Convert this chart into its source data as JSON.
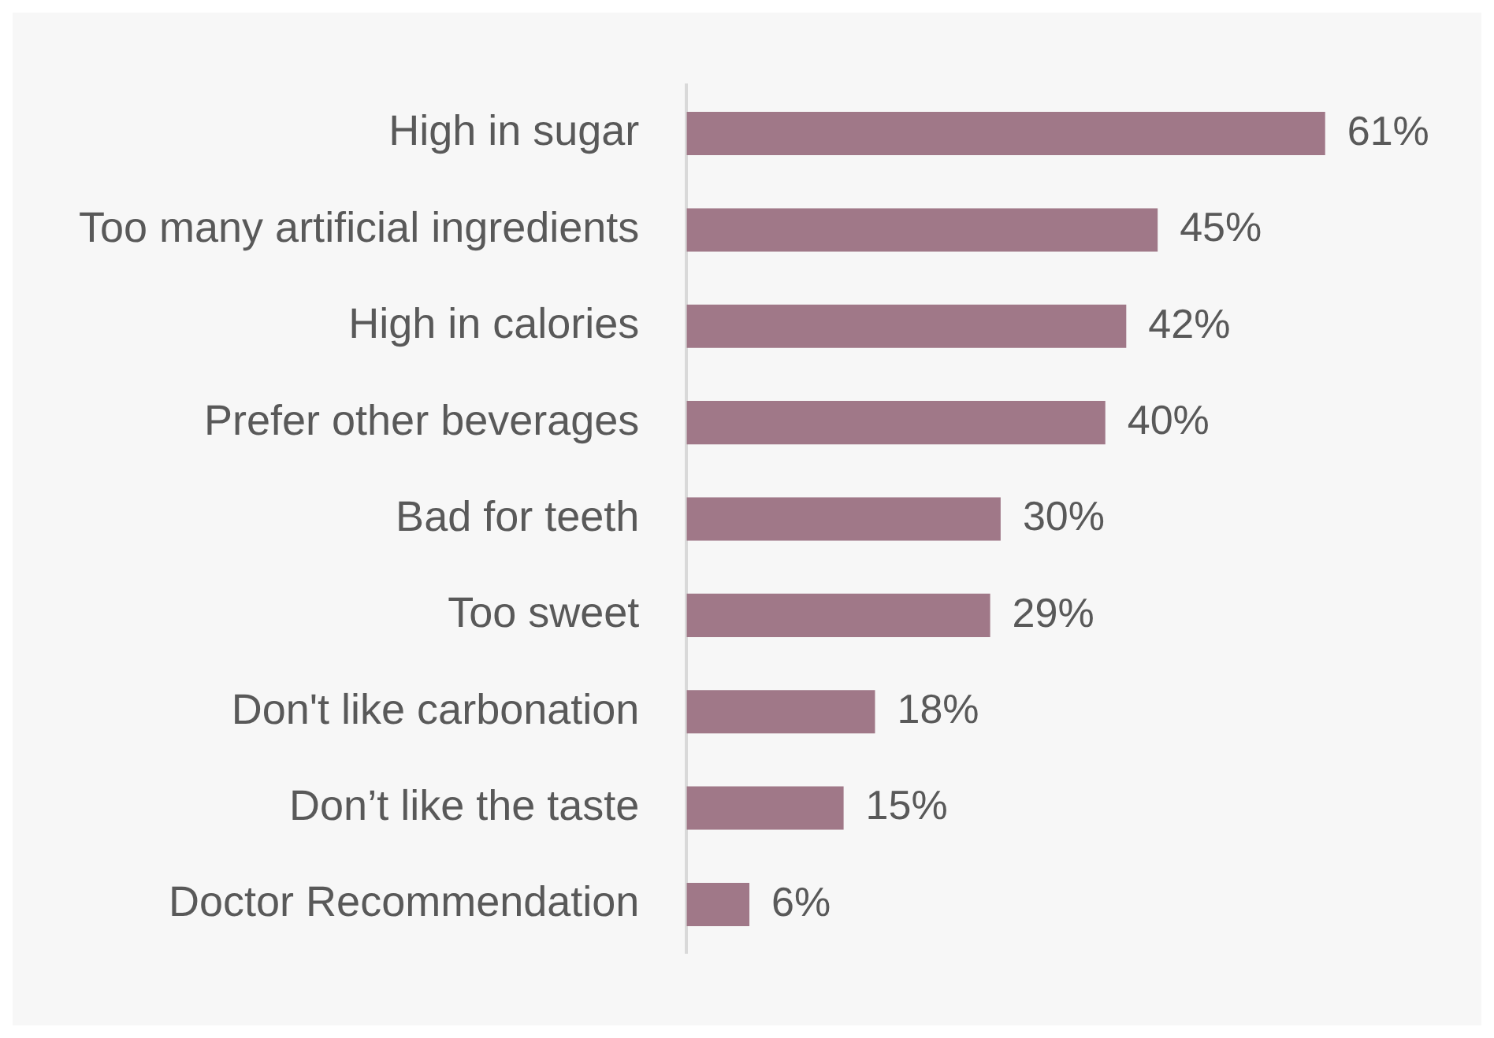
{
  "chart_data": {
    "type": "bar",
    "orientation": "horizontal",
    "categories": [
      "High in sugar",
      "Too many artificial ingredients",
      "High in calories",
      "Prefer other beverages",
      "Bad for teeth",
      "Too sweet",
      "Don't like carbonation",
      "Don’t like the taste",
      "Doctor Recommendation"
    ],
    "values": [
      61,
      45,
      42,
      40,
      30,
      29,
      18,
      15,
      6
    ],
    "value_labels": [
      "61%",
      "45%",
      "42%",
      "40%",
      "30%",
      "29%",
      "18%",
      "15%",
      "6%"
    ],
    "color": "#a07888",
    "legend": false
  }
}
